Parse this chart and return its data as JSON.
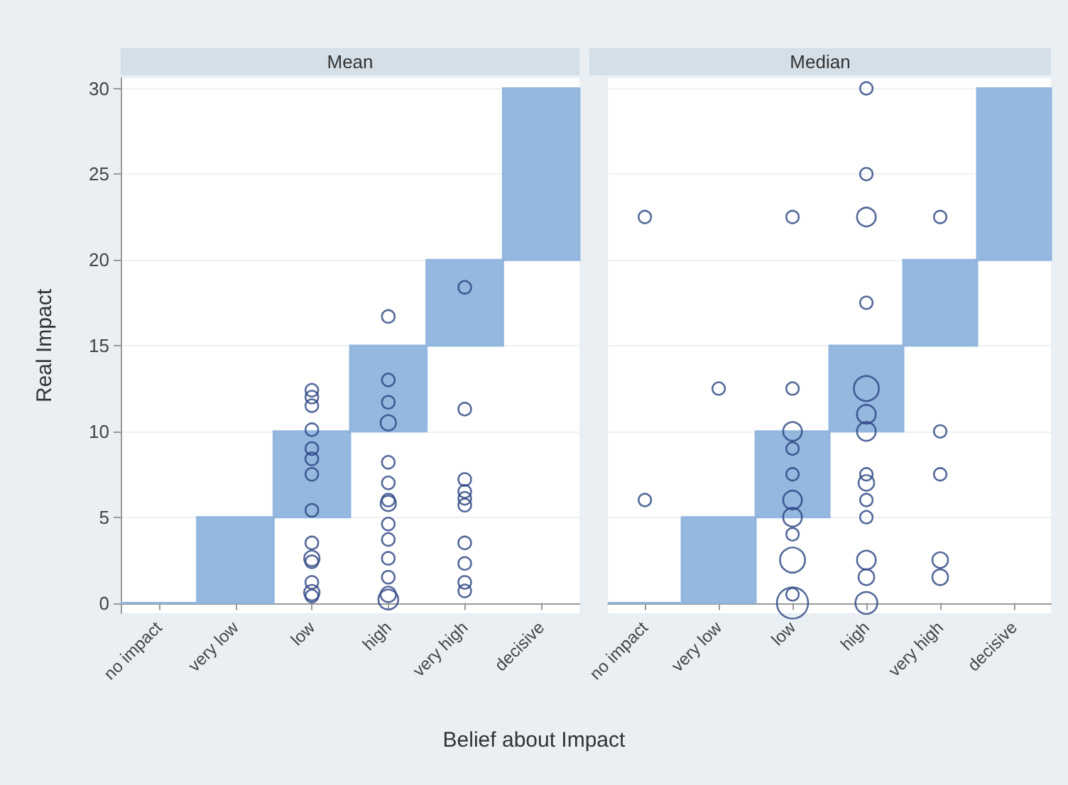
{
  "chart_data": [
    {
      "type": "bar",
      "title": "Mean",
      "xlabel": "Belief about Impact",
      "ylabel": "Real Impact",
      "categories": [
        "no impact",
        "very low",
        "low",
        "high",
        "very high",
        "decisive"
      ],
      "ylim": [
        -0.6,
        30.6
      ],
      "yticks": [
        0,
        5,
        10,
        15,
        20,
        25,
        30
      ],
      "grid": "y",
      "marker": "circle",
      "series": [
        {
          "color": "#8fb4dd",
          "base": [
            0,
            0,
            5,
            10,
            15,
            20
          ],
          "values": [
            0,
            5,
            5,
            5,
            5,
            10
          ]
        },
        {
          "type": "bubble",
          "color": "#2b4382",
          "x": [
            "low",
            "low",
            "low",
            "low",
            "low",
            "low",
            "low",
            "low",
            "low",
            "low",
            "low",
            "low",
            "low",
            "low",
            "high",
            "high",
            "high",
            "high",
            "high",
            "high",
            "high",
            "high",
            "high",
            "high",
            "high",
            "high",
            "high",
            "high",
            "very high",
            "very high",
            "very high",
            "very high",
            "very high",
            "very high",
            "very high",
            "very high",
            "very high",
            "very high"
          ],
          "values": [
            12.4,
            12.0,
            11.5,
            10.1,
            9.0,
            8.4,
            7.5,
            5.4,
            3.5,
            2.6,
            2.4,
            1.2,
            0.6,
            0.4,
            16.7,
            13,
            11.7,
            10.5,
            8.2,
            7,
            6,
            5.8,
            4.6,
            3.7,
            2.6,
            1.5,
            0.5,
            0.2,
            18.4,
            11.3,
            7.2,
            6.5,
            6.1,
            5.7,
            3.5,
            2.3,
            1.2,
            0.7
          ],
          "sizes": [
            0.41,
            0.41,
            0.41,
            0.41,
            0.41,
            0.41,
            0.41,
            0.41,
            0.41,
            0.6,
            0.41,
            0.41,
            0.6,
            0.41,
            0.41,
            0.41,
            0.41,
            0.6,
            0.41,
            0.41,
            0.41,
            0.6,
            0.41,
            0.41,
            0.41,
            0.41,
            0.6,
            1,
            0.41,
            0.41,
            0.41,
            0.41,
            0.41,
            0.41,
            0.41,
            0.41,
            0.41,
            0.41
          ]
        }
      ]
    },
    {
      "type": "bar",
      "title": "Median",
      "categories": [
        "no impact",
        "very low",
        "low",
        "high",
        "very high",
        "decisive"
      ],
      "ylim": [
        -0.6,
        30.6
      ],
      "yticks": [
        0,
        5,
        10,
        15,
        20,
        25,
        30
      ],
      "tick_labels": "x",
      "grid": "y",
      "marker": "circle",
      "series": [
        {
          "color": "#8fb4dd",
          "base": [
            0,
            0,
            5,
            10,
            15,
            20
          ],
          "values": [
            0,
            5,
            5,
            5,
            5,
            10
          ]
        },
        {
          "type": "bubble",
          "color": "#2b4382",
          "x": [
            "no impact",
            "no impact",
            "very low",
            "low",
            "low",
            "low",
            "low",
            "low",
            "low",
            "low",
            "low",
            "low",
            "low",
            "low",
            "high",
            "high",
            "high",
            "high",
            "high",
            "high",
            "high",
            "high",
            "high",
            "high",
            "high",
            "high",
            "high",
            "high",
            "very high",
            "very high",
            "very high",
            "very high",
            "very high"
          ],
          "values": [
            22.5,
            6,
            12.5,
            22.5,
            12.5,
            10,
            9,
            7.5,
            6,
            5,
            4,
            2.5,
            0.5,
            0,
            30,
            25,
            22.5,
            17.5,
            12.5,
            11,
            10,
            7.5,
            7,
            6,
            5,
            2.5,
            1.5,
            0,
            22.5,
            10,
            7.5,
            2.5,
            1.5
          ],
          "sizes": [
            0.16,
            0.16,
            0.16,
            0.16,
            0.16,
            0.36,
            0.16,
            0.16,
            0.36,
            0.36,
            0.16,
            0.64,
            0.16,
            1,
            0.16,
            0.16,
            0.36,
            0.16,
            0.64,
            0.36,
            0.36,
            0.16,
            0.25,
            0.16,
            0.16,
            0.36,
            0.25,
            0.49,
            0.16,
            0.16,
            0.16,
            0.25,
            0.25
          ]
        }
      ]
    }
  ]
}
